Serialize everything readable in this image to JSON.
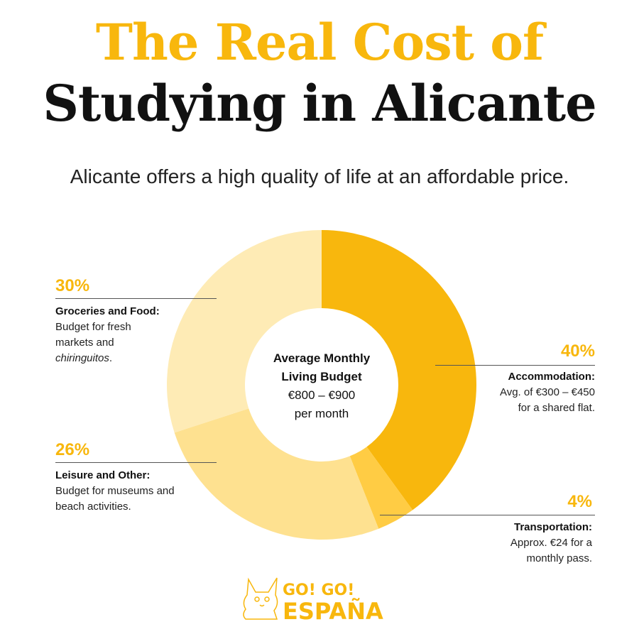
{
  "title_line1": "The Real Cost of",
  "title_line2": "Studying in Alicante",
  "subtitle": "Alicante offers a high quality of life at an affordable price.",
  "center": {
    "line1": "Average Monthly",
    "line2": "Living Budget",
    "line3": "€800 – €900",
    "line4": "per month"
  },
  "chart_data": {
    "type": "pie",
    "variant": "donut",
    "categories": [
      "Accommodation",
      "Transportation",
      "Leisure and Other",
      "Groceries and Food"
    ],
    "values": [
      40,
      4,
      26,
      30
    ],
    "colors": [
      "#F8B70D",
      "#FFCC44",
      "#FEE190",
      "#FEEBB5"
    ]
  },
  "labels": {
    "accommodation": {
      "pct": "40%",
      "head": "Accommodation:",
      "l1": "Avg. of €300 – €450",
      "l2": "for a shared flat."
    },
    "transport": {
      "pct": "4%",
      "head": "Transportation:",
      "l1": "Approx. €24 for a",
      "l2": "monthly pass."
    },
    "leisure": {
      "pct": "26%",
      "head": "Leisure and Other:",
      "l1": "Budget for museums and",
      "l2": "beach activities."
    },
    "groceries": {
      "pct": "30%",
      "head": "Groceries and Food:",
      "l1": "Budget for fresh",
      "l2": "markets and",
      "l3": "chiringuitos",
      "l3_suffix": "."
    }
  },
  "logo": {
    "line1": "GO! GO!",
    "line2": "ESPAÑA",
    "color": "#F8B70D"
  }
}
